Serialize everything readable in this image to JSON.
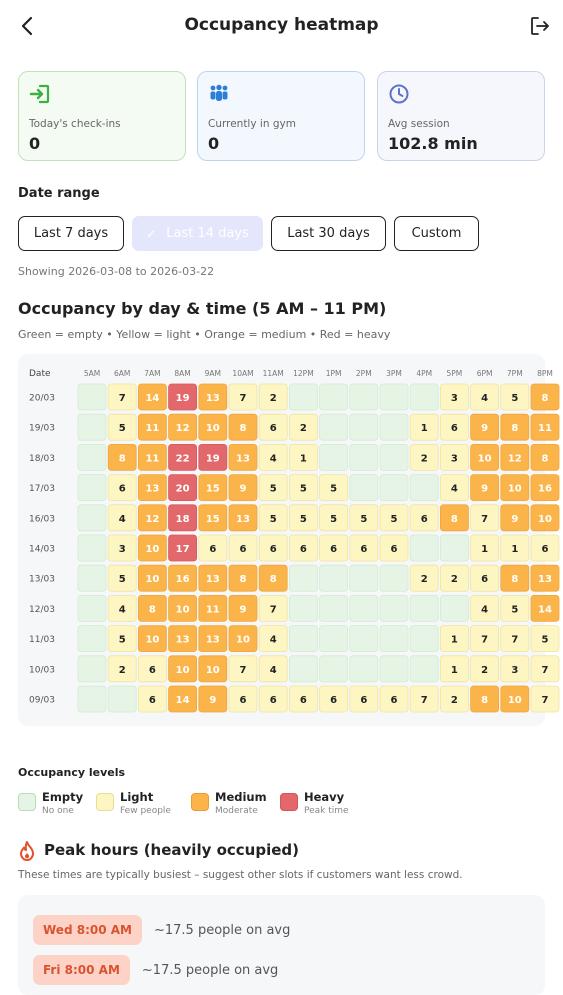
{
  "header": {
    "title": "Occupancy heatmap",
    "back_icon": "chevron-left-icon",
    "logout_icon": "logout-icon"
  },
  "stats": [
    {
      "label": "Today's check-ins",
      "value": "0",
      "icon": "login-icon",
      "color": "#3cb043"
    },
    {
      "label": "Currently in gym",
      "value": "0",
      "icon": "people-icon",
      "color": "#2b7fd6"
    },
    {
      "label": "Avg session",
      "value": "102.8 min",
      "icon": "clock-icon",
      "color": "#5b74c8"
    }
  ],
  "date_range": {
    "label": "Date range",
    "options": [
      "Last 7 days",
      "Last 14 days",
      "Last 30 days",
      "Custom"
    ],
    "selected": "Last 14 days",
    "showing": "Showing 2026-03-08 to 2026-03-22"
  },
  "heatmap": {
    "title": "Occupancy by day & time (5 AM – 11 PM)",
    "subtitle": "Green = empty • Yellow = light • Orange = medium • Red = heavy",
    "corner_label": "Date",
    "hours": [
      "5AM",
      "6AM",
      "7AM",
      "8AM",
      "9AM",
      "10AM",
      "11AM",
      "12PM",
      "1PM",
      "2PM",
      "3PM",
      "4PM",
      "5PM",
      "6PM",
      "7PM",
      "8PM"
    ],
    "rows": [
      {
        "date": "20/03",
        "values": [
          0,
          7,
          14,
          19,
          13,
          7,
          2,
          0,
          0,
          0,
          0,
          0,
          3,
          4,
          5,
          8
        ]
      },
      {
        "date": "19/03",
        "values": [
          0,
          5,
          11,
          12,
          10,
          8,
          6,
          2,
          0,
          0,
          0,
          1,
          6,
          9,
          8,
          11
        ]
      },
      {
        "date": "18/03",
        "values": [
          0,
          8,
          11,
          22,
          19,
          13,
          4,
          1,
          0,
          0,
          0,
          2,
          3,
          10,
          12,
          8
        ]
      },
      {
        "date": "17/03",
        "values": [
          0,
          6,
          13,
          20,
          15,
          9,
          5,
          5,
          5,
          0,
          0,
          0,
          4,
          9,
          10,
          16
        ]
      },
      {
        "date": "16/03",
        "values": [
          0,
          4,
          12,
          18,
          15,
          13,
          5,
          5,
          5,
          5,
          5,
          6,
          8,
          7,
          9,
          10
        ]
      },
      {
        "date": "14/03",
        "values": [
          0,
          3,
          10,
          17,
          6,
          6,
          6,
          6,
          6,
          6,
          6,
          0,
          0,
          1,
          1,
          6
        ]
      },
      {
        "date": "13/03",
        "values": [
          0,
          5,
          10,
          16,
          13,
          8,
          8,
          0,
          0,
          0,
          0,
          2,
          2,
          6,
          8,
          13
        ]
      },
      {
        "date": "12/03",
        "values": [
          0,
          4,
          8,
          10,
          11,
          9,
          7,
          0,
          0,
          0,
          0,
          0,
          0,
          4,
          5,
          14
        ]
      },
      {
        "date": "11/03",
        "values": [
          0,
          5,
          10,
          13,
          13,
          10,
          4,
          0,
          0,
          0,
          0,
          0,
          1,
          7,
          7,
          5
        ]
      },
      {
        "date": "10/03",
        "values": [
          0,
          2,
          6,
          10,
          10,
          7,
          4,
          0,
          0,
          0,
          0,
          0,
          1,
          2,
          3,
          7
        ]
      },
      {
        "date": "09/03",
        "values": [
          0,
          0,
          6,
          14,
          9,
          6,
          6,
          6,
          6,
          6,
          6,
          7,
          2,
          8,
          10,
          7
        ]
      }
    ],
    "colors": {
      "empty": "#e6f4e6",
      "light": "#fdf6c3",
      "medium": "#fbb449",
      "heavy": "#e3686b"
    }
  },
  "levels": {
    "title": "Occupancy levels",
    "items": [
      {
        "name": "Empty",
        "desc": "No one",
        "color": "#e6f4e6",
        "border": "#b9dcb9"
      },
      {
        "name": "Light",
        "desc": "Few people",
        "color": "#fdf6c3",
        "border": "#e9dd92"
      },
      {
        "name": "Medium",
        "desc": "Moderate",
        "color": "#fbb449",
        "border": "#e89e2f"
      },
      {
        "name": "Heavy",
        "desc": "Peak time",
        "color": "#e3686b",
        "border": "#d45458"
      }
    ]
  },
  "peak": {
    "title": "Peak hours (heavily occupied)",
    "subtitle": "These times are typically busiest – suggest other slots if customers want less crowd.",
    "items": [
      {
        "time": "Wed 8:00 AM",
        "avg": "~17.5 people on avg"
      },
      {
        "time": "Fri 8:00 AM",
        "avg": "~17.5 people on avg"
      }
    ]
  }
}
